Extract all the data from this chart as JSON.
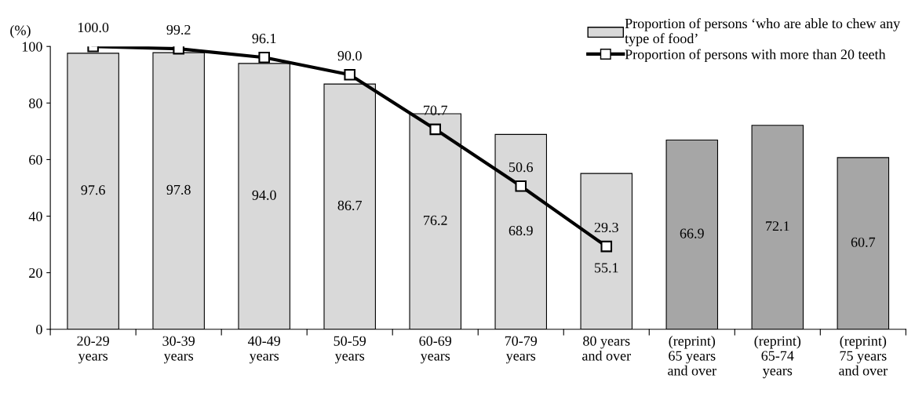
{
  "chart_data": {
    "type": "bar",
    "ylabel": "(%)",
    "categories": [
      "20-29\nyears",
      "30-39\nyears",
      "40-49\nyears",
      "50-59\nyears",
      "60-69\nyears",
      "70-79\nyears",
      "80 years\nand over",
      "(reprint)\n65 years\nand over",
      "(reprint)\n65-74\nyears",
      "(reprint)\n75 years\nand over"
    ],
    "series": [
      {
        "name": "Proportion of persons ‘who are able to chew any\ntype of food’",
        "color": "#d9d9d9",
        "colors": [
          "#d9d9d9",
          "#d9d9d9",
          "#d9d9d9",
          "#d9d9d9",
          "#d9d9d9",
          "#d9d9d9",
          "#d9d9d9",
          "#a6a6a6",
          "#a6a6a6",
          "#a6a6a6"
        ],
        "values": [
          97.6,
          97.8,
          94.0,
          86.7,
          76.2,
          68.9,
          55.1,
          66.9,
          72.1,
          60.7
        ],
        "value_labels": [
          "97.6",
          "97.8",
          "94.0",
          "86.7",
          "76.2",
          "68.9",
          "55.1",
          "66.9",
          "72.1",
          "60.7"
        ]
      },
      {
        "type": "line",
        "name": "Proportion of persons with more than 20 teeth",
        "color": "#000000",
        "marker": "square",
        "values": [
          100.0,
          99.2,
          96.1,
          90.0,
          70.7,
          50.6,
          29.3,
          null,
          null,
          null
        ],
        "value_labels": [
          "100.0",
          "99.2",
          "96.1",
          "90.0",
          "70.7",
          "50.6",
          "29.3",
          null,
          null,
          null
        ]
      }
    ],
    "ylim": [
      0,
      100
    ],
    "yticks": [
      0,
      20,
      40,
      60,
      80,
      100
    ],
    "grid": false,
    "legend": "top right"
  }
}
